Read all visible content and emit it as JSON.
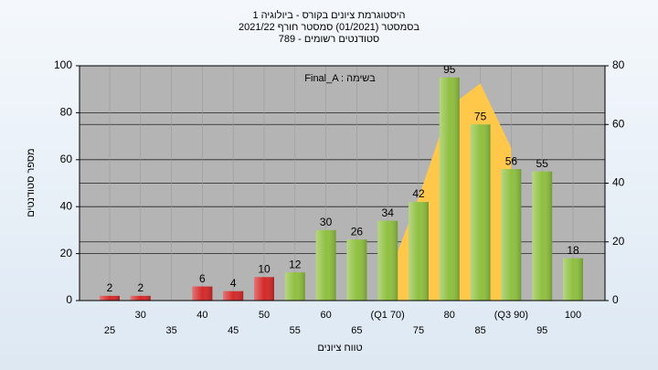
{
  "chart_data": {
    "type": "bar",
    "title": [
      "היסטוגרמת ציונים בקורס - ביולוגיה 1",
      "בסמסטר (01/2021) סמסטר חורף 2021/22",
      "סטודנטים רשומים - 789"
    ],
    "annotation": "Final_A : בשימה",
    "ylabel": "מספר סטודנטים",
    "xlabel": "טווח ציונים",
    "categories": [
      "25",
      "30",
      "35",
      "40",
      "45",
      "50",
      "55",
      "60",
      "65",
      "(Q1 70)",
      "75",
      "80",
      "85",
      "(Q3 90)",
      "95",
      "100"
    ],
    "values": [
      2,
      2,
      null,
      6,
      4,
      10,
      12,
      30,
      26,
      34,
      42,
      95,
      75,
      56,
      55,
      18
    ],
    "colors": [
      "#d42a2a",
      "#d42a2a",
      "#d42a2a",
      "#d42a2a",
      "#d42a2a",
      "#d42a2a",
      "#8fc040",
      "#8fc040",
      "#8fc040",
      "#8fc040",
      "#8fc040",
      "#8fc040",
      "#8fc040",
      "#8fc040",
      "#8fc040",
      "#8fc040"
    ],
    "area": {
      "color": "#ffc84a",
      "axis": "y2",
      "values": [
        null,
        null,
        null,
        null,
        null,
        null,
        null,
        null,
        null,
        8,
        35,
        66,
        74,
        52,
        null,
        null
      ]
    },
    "ylim": [
      0,
      100
    ],
    "yticks": [
      0,
      20,
      40,
      60,
      80,
      100
    ],
    "y2lim": [
      0,
      80
    ],
    "y2ticks": [
      0,
      20,
      40,
      60,
      80
    ],
    "grid": true
  }
}
